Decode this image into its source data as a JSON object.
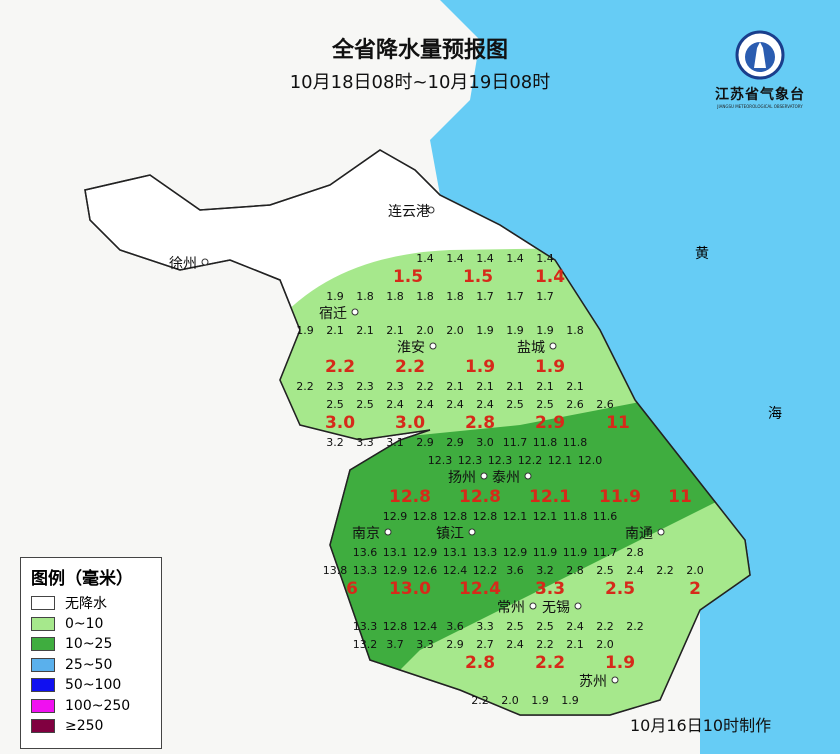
{
  "title": "全省降水量预报图",
  "subtitle": "10月18日08时~10月19日08时",
  "logo": {
    "name": "江苏省气象台",
    "sub": "JIANGSU METEOROLOGICAL OBSERVATORY"
  },
  "footer": "10月16日10时制作",
  "sea_labels": [
    "黄",
    "海"
  ],
  "colors": {
    "sea": "#66ccf5",
    "no_rain": "#f7f7f5",
    "light_green": "#a6e88c",
    "dark_green": "#3fad3f",
    "value_red": "#d62a1a"
  },
  "legend": {
    "title": "图例（毫米）",
    "items": [
      {
        "label": "无降水",
        "color": "#ffffff"
      },
      {
        "label": "0~10",
        "color": "#a6e88c"
      },
      {
        "label": "10~25",
        "color": "#3fad3f"
      },
      {
        "label": "25~50",
        "color": "#5ab0ec"
      },
      {
        "label": "50~100",
        "color": "#1010f0"
      },
      {
        "label": "100~250",
        "color": "#f010f0"
      },
      {
        "label": "≥250",
        "color": "#800040"
      }
    ]
  },
  "cities": [
    "连云港",
    "徐州",
    "宿迁",
    "淮安",
    "盐城",
    "扬州",
    "泰州",
    "镇江",
    "南京",
    "常州",
    "无锡",
    "苏州",
    "南通"
  ],
  "city_values": [
    "1.5",
    "1.5",
    "1.4",
    "2.2",
    "2.2",
    "1.9",
    "1.9",
    "3.0",
    "3.0",
    "2.8",
    "2.9",
    "11",
    "12.8",
    "12.8",
    "12.1",
    "11.9",
    "11",
    "6",
    "13.0",
    "12.4",
    "3.3",
    "2.5",
    "2",
    "2.8",
    "2.2",
    "1.9"
  ],
  "grid_rows": [
    [
      "1.4",
      "1.4",
      "1.4",
      "1.4",
      "1.4"
    ],
    [
      "1.9",
      "1.8",
      "1.8",
      "1.8",
      "1.8",
      "1.7",
      "1.7",
      "1.7"
    ],
    [
      "1.9",
      "2.1",
      "2.1",
      "2.1",
      "2.0",
      "2.0",
      "1.9",
      "1.9",
      "1.9",
      "1.8"
    ],
    [
      "2.2",
      "2.3",
      "2.3",
      "2.3",
      "2.2",
      "2.1",
      "2.1",
      "2.1",
      "2.1",
      "2.1"
    ],
    [
      "2.5",
      "2.5",
      "2.4",
      "2.4",
      "2.4",
      "2.4",
      "2.5",
      "2.5",
      "2.6",
      "2.6"
    ],
    [
      "3.2",
      "3.3",
      "3.1",
      "2.9",
      "2.9",
      "3.0",
      "11.7",
      "11.8",
      "11.8"
    ],
    [
      "12.3",
      "12.3",
      "12.3",
      "12.2",
      "12.1",
      "12.0"
    ],
    [
      "12.9",
      "12.8",
      "12.8",
      "12.8",
      "12.1",
      "12.1",
      "11.8",
      "11.6"
    ],
    [
      "13.6",
      "13.1",
      "12.9",
      "13.1",
      "13.3",
      "12.9",
      "11.9",
      "11.9",
      "11.7",
      "2.8"
    ],
    [
      "13.8",
      "13.3",
      "12.9",
      "12.6",
      "12.4",
      "12.2",
      "3.6",
      "3.2",
      "2.8",
      "2.5",
      "2.4",
      "2.2",
      "2.0"
    ],
    [
      "13.3",
      "12.8",
      "12.4",
      "3.6",
      "3.3",
      "2.5",
      "2.5",
      "2.4",
      "2.2",
      "2.2"
    ],
    [
      "13.2",
      "3.7",
      "3.3",
      "2.9",
      "2.7",
      "2.4",
      "2.2",
      "2.1",
      "2.0"
    ],
    [
      "2.2",
      "2.0",
      "1.9",
      "1.9"
    ]
  ]
}
